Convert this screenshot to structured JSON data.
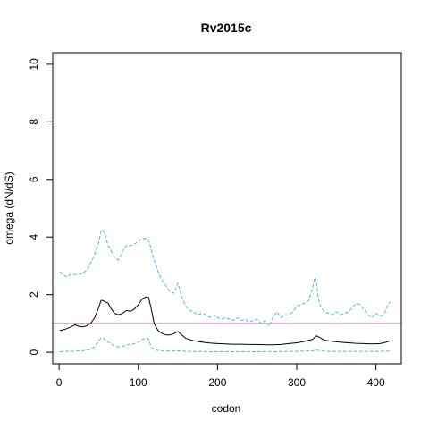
{
  "chart_data": {
    "type": "line",
    "title": "Rv2015c",
    "xlabel": "codon",
    "ylabel": "omega (dN/dS)",
    "xlim": [
      -8,
      432
    ],
    "ylim": [
      -0.4,
      10.4
    ],
    "x_ticks": [
      0,
      100,
      200,
      300,
      400
    ],
    "y_ticks": [
      0,
      2,
      4,
      6,
      8,
      10
    ],
    "grid": false,
    "reference_line": {
      "y": 1,
      "color": "#cc79a7"
    },
    "series": [
      {
        "role": "upper",
        "color": "#56b4e9",
        "dash": "dashed",
        "x": [
          1,
          5,
          10,
          15,
          20,
          25,
          30,
          35,
          40,
          45,
          50,
          53,
          55,
          58,
          62,
          66,
          70,
          75,
          80,
          85,
          90,
          95,
          100,
          105,
          110,
          113,
          116,
          120,
          125,
          130,
          135,
          140,
          145,
          150,
          155,
          160,
          165,
          170,
          175,
          180,
          185,
          190,
          195,
          200,
          205,
          210,
          215,
          220,
          225,
          230,
          235,
          240,
          245,
          250,
          255,
          260,
          265,
          270,
          275,
          280,
          285,
          290,
          295,
          300,
          305,
          310,
          315,
          320,
          323,
          325,
          327,
          330,
          335,
          340,
          345,
          350,
          355,
          360,
          365,
          370,
          375,
          380,
          385,
          390,
          395,
          400,
          405,
          410,
          415,
          418
        ],
        "y": [
          2.8,
          2.7,
          2.6,
          2.7,
          2.7,
          2.7,
          2.75,
          2.85,
          3.1,
          3.4,
          3.8,
          4.2,
          4.25,
          4.1,
          3.7,
          3.5,
          3.3,
          3.2,
          3.5,
          3.7,
          3.7,
          3.75,
          3.85,
          3.95,
          3.95,
          3.9,
          3.6,
          3.2,
          2.8,
          2.5,
          2.3,
          2.1,
          2.05,
          2.4,
          1.9,
          1.6,
          1.45,
          1.4,
          1.3,
          1.35,
          1.3,
          1.2,
          1.3,
          1.2,
          1.15,
          1.2,
          1.15,
          1.1,
          1.2,
          1.1,
          1.15,
          1.05,
          1.1,
          1.15,
          1.0,
          1.1,
          0.9,
          1.2,
          1.4,
          1.2,
          1.3,
          1.3,
          1.4,
          1.6,
          1.65,
          1.7,
          1.8,
          2.2,
          2.6,
          2.4,
          1.9,
          1.6,
          1.4,
          1.35,
          1.3,
          1.4,
          1.3,
          1.35,
          1.4,
          1.55,
          1.7,
          1.65,
          1.5,
          1.3,
          1.2,
          1.35,
          1.25,
          1.3,
          1.65,
          1.75
        ]
      },
      {
        "role": "estimate",
        "color": "#000000",
        "dash": "solid",
        "x": [
          1,
          5,
          10,
          15,
          20,
          25,
          30,
          35,
          40,
          45,
          50,
          53,
          55,
          58,
          62,
          66,
          70,
          75,
          80,
          85,
          90,
          95,
          100,
          105,
          110,
          113,
          116,
          120,
          125,
          130,
          135,
          140,
          145,
          150,
          155,
          160,
          170,
          180,
          190,
          200,
          210,
          220,
          230,
          240,
          250,
          260,
          270,
          280,
          290,
          300,
          310,
          320,
          325,
          330,
          335,
          345,
          355,
          365,
          375,
          385,
          395,
          405,
          410,
          415,
          418
        ],
        "y": [
          0.75,
          0.78,
          0.82,
          0.88,
          0.95,
          0.9,
          0.88,
          0.92,
          1.0,
          1.2,
          1.55,
          1.8,
          1.8,
          1.75,
          1.7,
          1.5,
          1.35,
          1.3,
          1.35,
          1.45,
          1.42,
          1.5,
          1.65,
          1.85,
          1.92,
          1.9,
          1.55,
          1.0,
          0.75,
          0.65,
          0.6,
          0.6,
          0.65,
          0.72,
          0.6,
          0.48,
          0.4,
          0.35,
          0.32,
          0.3,
          0.29,
          0.28,
          0.28,
          0.27,
          0.27,
          0.26,
          0.26,
          0.27,
          0.3,
          0.33,
          0.38,
          0.45,
          0.57,
          0.5,
          0.42,
          0.38,
          0.35,
          0.33,
          0.31,
          0.3,
          0.29,
          0.3,
          0.33,
          0.37,
          0.4
        ]
      },
      {
        "role": "lower",
        "color": "#56b4e9",
        "dash": "dashed",
        "x": [
          1,
          10,
          20,
          30,
          40,
          45,
          50,
          53,
          56,
          60,
          65,
          70,
          75,
          80,
          85,
          90,
          95,
          100,
          105,
          110,
          113,
          116,
          120,
          130,
          140,
          150,
          160,
          200,
          250,
          300,
          320,
          325,
          330,
          340,
          360,
          380,
          400,
          418
        ],
        "y": [
          0.02,
          0.03,
          0.04,
          0.06,
          0.1,
          0.2,
          0.38,
          0.5,
          0.48,
          0.4,
          0.3,
          0.22,
          0.18,
          0.2,
          0.25,
          0.28,
          0.3,
          0.35,
          0.45,
          0.5,
          0.45,
          0.2,
          0.08,
          0.05,
          0.04,
          0.05,
          0.03,
          0.02,
          0.02,
          0.03,
          0.05,
          0.08,
          0.05,
          0.03,
          0.03,
          0.03,
          0.03,
          0.04
        ]
      }
    ]
  }
}
